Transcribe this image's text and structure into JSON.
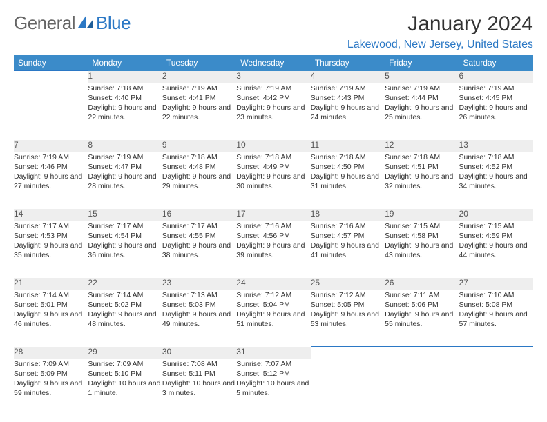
{
  "brand": {
    "word1": "General",
    "word2": "Blue"
  },
  "title": "January 2024",
  "location": "Lakewood, New Jersey, United States",
  "colors": {
    "accent": "#3b8bc9",
    "link": "#2b78c5",
    "grid_border": "#2b78c5",
    "day_bg": "#eeeeee",
    "text": "#333333"
  },
  "day_headers": [
    "Sunday",
    "Monday",
    "Tuesday",
    "Wednesday",
    "Thursday",
    "Friday",
    "Saturday"
  ],
  "weeks": [
    [
      null,
      {
        "n": "1",
        "sunrise": "7:18 AM",
        "sunset": "4:40 PM",
        "daylight": "9 hours and 22 minutes."
      },
      {
        "n": "2",
        "sunrise": "7:19 AM",
        "sunset": "4:41 PM",
        "daylight": "9 hours and 22 minutes."
      },
      {
        "n": "3",
        "sunrise": "7:19 AM",
        "sunset": "4:42 PM",
        "daylight": "9 hours and 23 minutes."
      },
      {
        "n": "4",
        "sunrise": "7:19 AM",
        "sunset": "4:43 PM",
        "daylight": "9 hours and 24 minutes."
      },
      {
        "n": "5",
        "sunrise": "7:19 AM",
        "sunset": "4:44 PM",
        "daylight": "9 hours and 25 minutes."
      },
      {
        "n": "6",
        "sunrise": "7:19 AM",
        "sunset": "4:45 PM",
        "daylight": "9 hours and 26 minutes."
      }
    ],
    [
      {
        "n": "7",
        "sunrise": "7:19 AM",
        "sunset": "4:46 PM",
        "daylight": "9 hours and 27 minutes."
      },
      {
        "n": "8",
        "sunrise": "7:19 AM",
        "sunset": "4:47 PM",
        "daylight": "9 hours and 28 minutes."
      },
      {
        "n": "9",
        "sunrise": "7:18 AM",
        "sunset": "4:48 PM",
        "daylight": "9 hours and 29 minutes."
      },
      {
        "n": "10",
        "sunrise": "7:18 AM",
        "sunset": "4:49 PM",
        "daylight": "9 hours and 30 minutes."
      },
      {
        "n": "11",
        "sunrise": "7:18 AM",
        "sunset": "4:50 PM",
        "daylight": "9 hours and 31 minutes."
      },
      {
        "n": "12",
        "sunrise": "7:18 AM",
        "sunset": "4:51 PM",
        "daylight": "9 hours and 32 minutes."
      },
      {
        "n": "13",
        "sunrise": "7:18 AM",
        "sunset": "4:52 PM",
        "daylight": "9 hours and 34 minutes."
      }
    ],
    [
      {
        "n": "14",
        "sunrise": "7:17 AM",
        "sunset": "4:53 PM",
        "daylight": "9 hours and 35 minutes."
      },
      {
        "n": "15",
        "sunrise": "7:17 AM",
        "sunset": "4:54 PM",
        "daylight": "9 hours and 36 minutes."
      },
      {
        "n": "16",
        "sunrise": "7:17 AM",
        "sunset": "4:55 PM",
        "daylight": "9 hours and 38 minutes."
      },
      {
        "n": "17",
        "sunrise": "7:16 AM",
        "sunset": "4:56 PM",
        "daylight": "9 hours and 39 minutes."
      },
      {
        "n": "18",
        "sunrise": "7:16 AM",
        "sunset": "4:57 PM",
        "daylight": "9 hours and 41 minutes."
      },
      {
        "n": "19",
        "sunrise": "7:15 AM",
        "sunset": "4:58 PM",
        "daylight": "9 hours and 43 minutes."
      },
      {
        "n": "20",
        "sunrise": "7:15 AM",
        "sunset": "4:59 PM",
        "daylight": "9 hours and 44 minutes."
      }
    ],
    [
      {
        "n": "21",
        "sunrise": "7:14 AM",
        "sunset": "5:01 PM",
        "daylight": "9 hours and 46 minutes."
      },
      {
        "n": "22",
        "sunrise": "7:14 AM",
        "sunset": "5:02 PM",
        "daylight": "9 hours and 48 minutes."
      },
      {
        "n": "23",
        "sunrise": "7:13 AM",
        "sunset": "5:03 PM",
        "daylight": "9 hours and 49 minutes."
      },
      {
        "n": "24",
        "sunrise": "7:12 AM",
        "sunset": "5:04 PM",
        "daylight": "9 hours and 51 minutes."
      },
      {
        "n": "25",
        "sunrise": "7:12 AM",
        "sunset": "5:05 PM",
        "daylight": "9 hours and 53 minutes."
      },
      {
        "n": "26",
        "sunrise": "7:11 AM",
        "sunset": "5:06 PM",
        "daylight": "9 hours and 55 minutes."
      },
      {
        "n": "27",
        "sunrise": "7:10 AM",
        "sunset": "5:08 PM",
        "daylight": "9 hours and 57 minutes."
      }
    ],
    [
      {
        "n": "28",
        "sunrise": "7:09 AM",
        "sunset": "5:09 PM",
        "daylight": "9 hours and 59 minutes."
      },
      {
        "n": "29",
        "sunrise": "7:09 AM",
        "sunset": "5:10 PM",
        "daylight": "10 hours and 1 minute."
      },
      {
        "n": "30",
        "sunrise": "7:08 AM",
        "sunset": "5:11 PM",
        "daylight": "10 hours and 3 minutes."
      },
      {
        "n": "31",
        "sunrise": "7:07 AM",
        "sunset": "5:12 PM",
        "daylight": "10 hours and 5 minutes."
      },
      null,
      null,
      null
    ]
  ],
  "labels": {
    "sunrise": "Sunrise:",
    "sunset": "Sunset:",
    "daylight": "Daylight:"
  }
}
